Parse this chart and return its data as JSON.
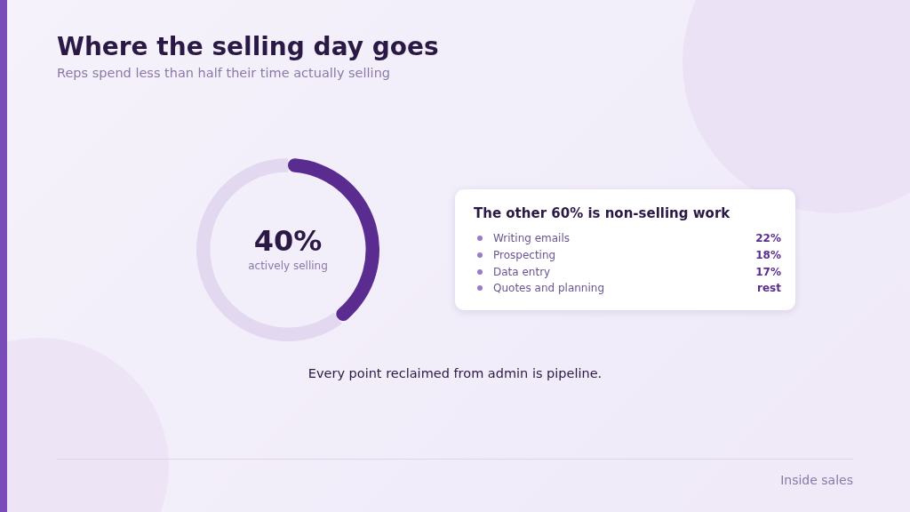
{
  "chart_data": [
    {
      "type": "donut",
      "title": "Where the selling day goes",
      "subtitle": "Reps spend less than half their time actually selling",
      "categories": [
        "actively selling",
        null
      ],
      "values": [
        40,
        60
      ],
      "colors": [
        "#5b2c8f",
        "#e2d8f0"
      ],
      "value_labels": [
        "40%",
        null
      ],
      "legend": false,
      "annotations": [
        "Every point reclaimed from admin is pipeline.",
        "Inside sales"
      ]
    },
    {
      "type": "other",
      "title": "The other 60% is non-selling work",
      "categories": [
        "Writing emails",
        "Prospecting",
        "Data entry",
        "Quotes and planning"
      ],
      "value_labels": [
        "22%",
        "18%",
        "17%",
        "rest"
      ]
    }
  ]
}
